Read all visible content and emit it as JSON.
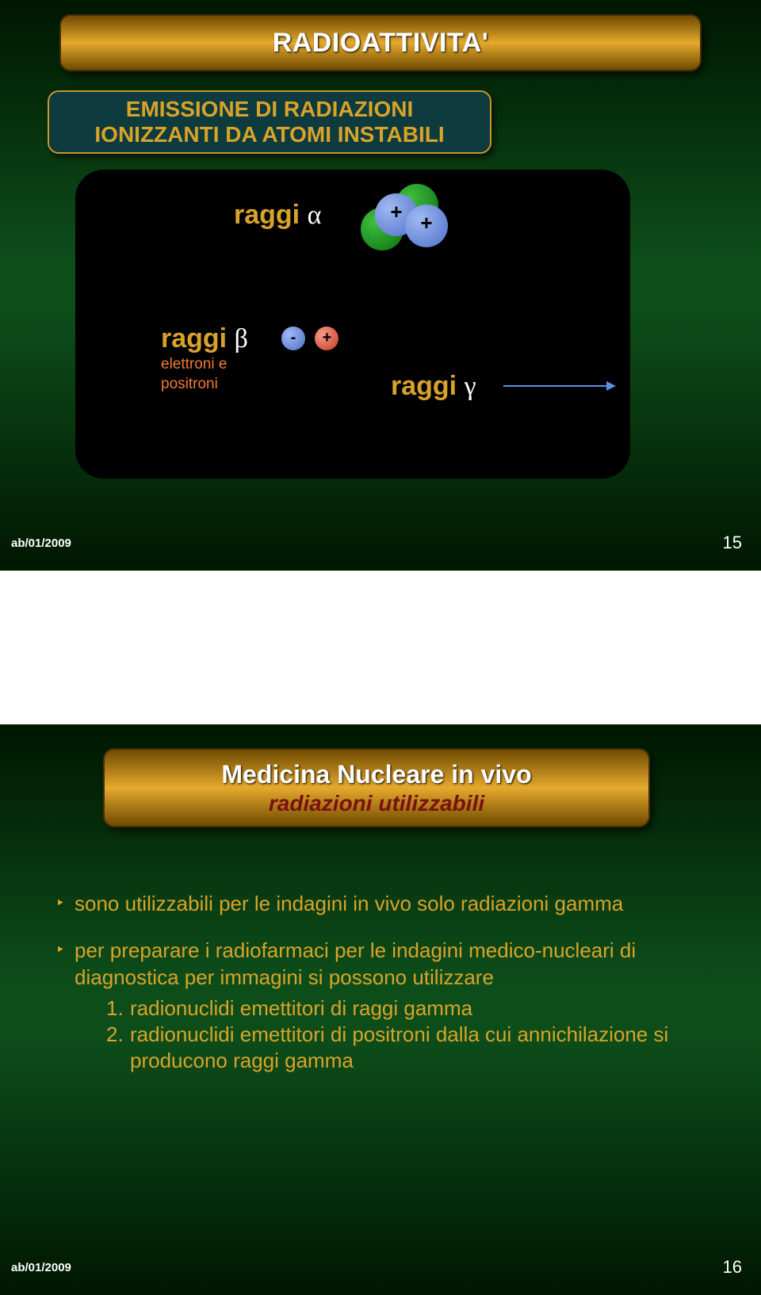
{
  "colors": {
    "slide_bg_dark": "#001700",
    "slide_bg_mid": "#0d4d1a",
    "plaque_gold_dark": "#6f4a00",
    "plaque_gold_light": "#e5a92d",
    "plaque_border": "#45300a",
    "teal_box": "#0d3b3e",
    "gold_border": "#c7952a",
    "gold_text": "#d9a32a",
    "orange_text": "#f27b3a",
    "dark_red": "#7b1010",
    "arrow_blue": "#5a8fe6",
    "nucleon_green": "#0b6e0f",
    "nucleon_blue": "#4e6fc9",
    "nucleon_red": "#c53b22",
    "white": "#ffffff",
    "black": "#000000"
  },
  "slide1": {
    "title": "RADIOATTIVITA'",
    "subtitle_l1": "EMISSIONE DI RADIAZIONI",
    "subtitle_l2": "IONIZZANTI DA ATOMI INSTABILI",
    "alpha": {
      "label": "raggi",
      "symbol": "α",
      "plus": "+"
    },
    "beta": {
      "label": "raggi",
      "symbol": "β",
      "minus": "-",
      "plus": "+",
      "sub_l1": "elettroni e",
      "sub_l2": "positroni"
    },
    "gamma": {
      "label": "raggi",
      "symbol": "γ"
    },
    "footer": "ab/01/2009",
    "page": "15"
  },
  "slide2": {
    "title_l1": "Medicina Nucleare in vivo",
    "title_l2": "radiazioni utilizzabili",
    "bullet1": "sono utilizzabili per le indagini in vivo solo radiazioni gamma",
    "bullet2_lead": "per preparare i radiofarmaci per le indagini medico-nucleari di diagnostica per immagini  si possono utilizzare",
    "sub1_num": "1.",
    "sub1": "radionuclidi emettitori di raggi gamma",
    "sub2_num": "2.",
    "sub2": "radionuclidi emettitori di positroni dalla cui annichilazione si producono raggi gamma",
    "footer": "ab/01/2009",
    "page": "16",
    "arrow_glyph": "‣"
  },
  "layout": {
    "slide_w": 960,
    "slide_h": 720,
    "gap_h": 194,
    "title_fontsize": 34,
    "body_fontsize": 26
  }
}
